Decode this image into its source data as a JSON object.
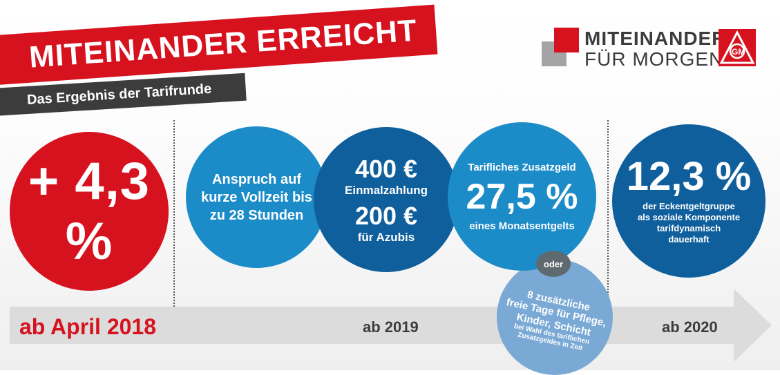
{
  "header": {
    "title": "MITEINANDER ERREICHT",
    "subtitle": "Das Ergebnis der Tarifrunde"
  },
  "logo": {
    "line1": "MITEINANDER",
    "line2": "FÜR MORGEN",
    "badge_text": "IGM",
    "badge_icon": "ig-metall-logo",
    "colors": {
      "red": "#d7121f",
      "grey": "#9a9a9a",
      "text": "#3c3c3c"
    }
  },
  "circles": {
    "raise": {
      "value": "+ 4,3 %"
    },
    "fulltime": {
      "line1": "Anspruch auf",
      "line2": "kurze Vollzeit bis",
      "line3": "zu 28 Stunden"
    },
    "onetime": {
      "amount1": "400 €",
      "label1": "Einmalzahlung",
      "amount2": "200 €",
      "label2": "für Azubis"
    },
    "extra": {
      "label_top": "Tarifliches Zusatzgeld",
      "value": "27,5 %",
      "label_bottom": "eines Monatsentgelts"
    },
    "social": {
      "value": "12,3 %",
      "line1": "der Eckentgeltgruppe",
      "line2": "als soziale Komponente",
      "line3": "tarifdynamisch",
      "line4": "dauerhaft"
    },
    "or": {
      "label": "oder"
    },
    "days": {
      "line1": "8 zusätzliche",
      "line2": "freie Tage für Pflege,",
      "line3": "Kinder, Schicht",
      "line4": "bei Wahl des tariflichen",
      "line5": "Zusatzgeldes in Zeit"
    }
  },
  "timeline": {
    "label1": "ab April 2018",
    "label2": "ab 2019",
    "label3": "ab 2020"
  },
  "colors": {
    "red": "#d7121f",
    "blue": "#1c8cc8",
    "dark_blue": "#0f5f9c",
    "light_blue": "#79a9d4",
    "grey_band": "#dcdcdc",
    "dark_banner": "#3c3c3c"
  }
}
